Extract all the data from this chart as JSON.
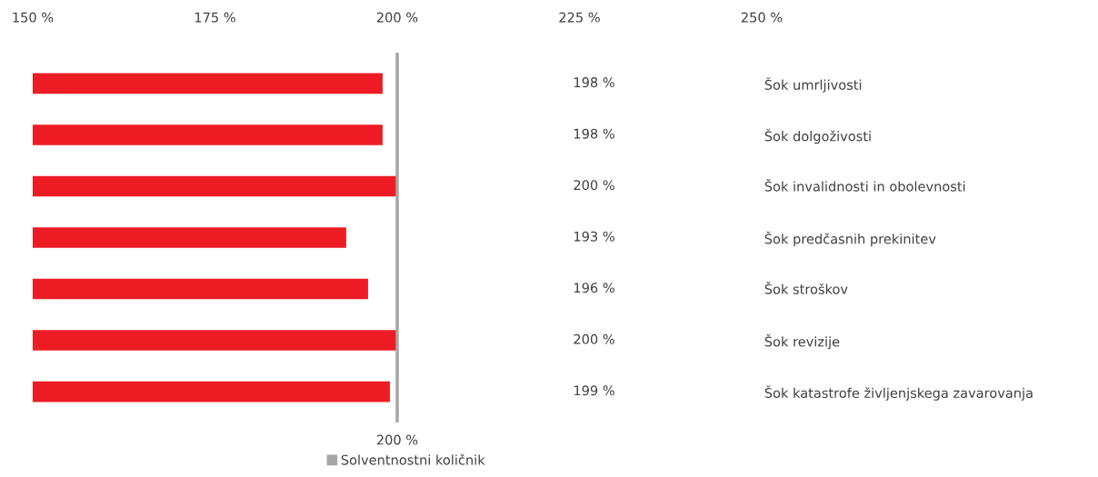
{
  "chart_data": {
    "type": "bar",
    "orientation": "horizontal",
    "categories": [
      "Šok umrljivosti",
      "Šok dolgoživosti",
      "Šok invalidnosti in obolevnosti",
      "Šok predčasnih prekinitev",
      "Šok stroškov",
      "Šok revizije",
      "Šok katastrofe življenjskega zavarovanja"
    ],
    "values": [
      198,
      198,
      200,
      193,
      196,
      200,
      199
    ],
    "value_labels": [
      "198 %",
      "198 %",
      "200 %",
      "193 %",
      "196 %",
      "200 %",
      "199 %"
    ],
    "color": "#ed1c24",
    "xlim": [
      150,
      250
    ],
    "xticks": [
      {
        "value": 150,
        "label": "150 %"
      },
      {
        "value": 175,
        "label": "175 %"
      },
      {
        "value": 200,
        "label": "200 %"
      },
      {
        "value": 225,
        "label": "225 %"
      },
      {
        "value": 250,
        "label": "250 %"
      }
    ],
    "ref_lines": [
      {
        "axis": "x",
        "value": 200,
        "label": "Solventnostni količnik",
        "color": "#a6a6a6"
      }
    ],
    "annotations": [
      "200 %"
    ],
    "grid": false,
    "legend": "bottom"
  }
}
